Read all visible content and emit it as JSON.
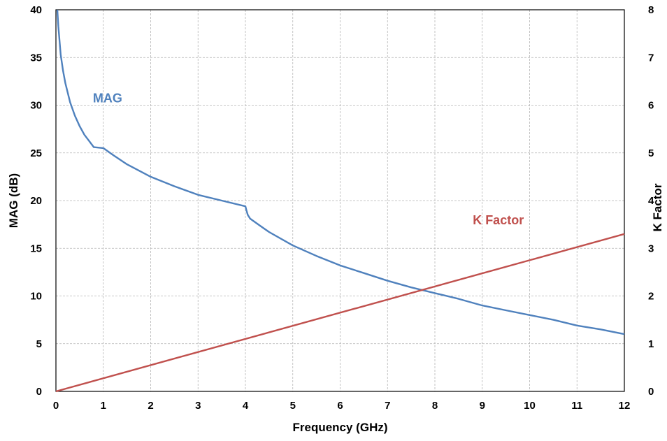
{
  "chart_data": {
    "type": "line",
    "title": "",
    "xlabel": "Frequency (GHz)",
    "ylabel_left": "MAG (dB)",
    "ylabel_right": "K Factor",
    "xlim": [
      0,
      12
    ],
    "ylim_left": [
      0,
      40
    ],
    "ylim_right": [
      0,
      8
    ],
    "x_ticks": [
      "0",
      "1",
      "2",
      "3",
      "4",
      "5",
      "6",
      "7",
      "8",
      "9",
      "10",
      "11",
      "12"
    ],
    "y_left_ticks": [
      "0",
      "5",
      "10",
      "15",
      "20",
      "25",
      "30",
      "35",
      "40"
    ],
    "y_right_ticks": [
      "0",
      "1",
      "2",
      "3",
      "4",
      "5",
      "6",
      "7",
      "8"
    ],
    "grid": true,
    "series": [
      {
        "name": "MAG",
        "axis": "left",
        "color": "#4f81bd",
        "points": [
          [
            0.03,
            40.0
          ],
          [
            0.05,
            38.3
          ],
          [
            0.1,
            35.3
          ],
          [
            0.15,
            33.6
          ],
          [
            0.2,
            32.3
          ],
          [
            0.3,
            30.3
          ],
          [
            0.4,
            28.9
          ],
          [
            0.5,
            27.8
          ],
          [
            0.6,
            26.9
          ],
          [
            0.8,
            25.6
          ],
          [
            1.0,
            25.5
          ],
          [
            1.2,
            24.8
          ],
          [
            1.5,
            23.8
          ],
          [
            2.0,
            22.5
          ],
          [
            2.5,
            21.5
          ],
          [
            3.0,
            20.6
          ],
          [
            3.5,
            20.0
          ],
          [
            4.0,
            19.4
          ],
          [
            4.02,
            19.0
          ],
          [
            4.05,
            18.5
          ],
          [
            4.1,
            18.1
          ],
          [
            4.3,
            17.4
          ],
          [
            4.5,
            16.7
          ],
          [
            5.0,
            15.3
          ],
          [
            5.5,
            14.2
          ],
          [
            6.0,
            13.2
          ],
          [
            6.5,
            12.4
          ],
          [
            7.0,
            11.6
          ],
          [
            7.5,
            10.9
          ],
          [
            8.0,
            10.3
          ],
          [
            8.5,
            9.7
          ],
          [
            9.0,
            9.0
          ],
          [
            9.5,
            8.5
          ],
          [
            10.0,
            8.0
          ],
          [
            10.5,
            7.5
          ],
          [
            11.0,
            6.9
          ],
          [
            11.5,
            6.5
          ],
          [
            12.0,
            6.0
          ]
        ]
      },
      {
        "name": "K Factor",
        "axis": "right",
        "color": "#c0504d",
        "points": [
          [
            0,
            0
          ],
          [
            12,
            3.3
          ]
        ]
      }
    ]
  }
}
